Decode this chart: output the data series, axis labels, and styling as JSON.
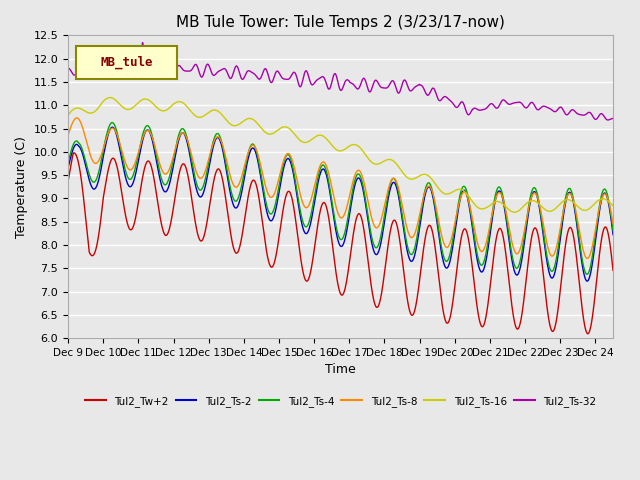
{
  "title": "MB Tule Tower: Tule Temps 2 (3/23/17-now)",
  "xlabel": "Time",
  "ylabel": "Temperature (C)",
  "ylim": [
    6.0,
    12.5
  ],
  "xlim": [
    0,
    15.5
  ],
  "background_color": "#e8e8e8",
  "plot_bg_color": "#e8e8e8",
  "grid_color": "white",
  "legend_label": "MB_tule",
  "series": [
    {
      "name": "Tul2_Tw+2",
      "color": "#cc0000"
    },
    {
      "name": "Tul2_Ts-2",
      "color": "#0000cc"
    },
    {
      "name": "Tul2_Ts-4",
      "color": "#00aa00"
    },
    {
      "name": "Tul2_Ts-8",
      "color": "#ff8800"
    },
    {
      "name": "Tul2_Ts-16",
      "color": "#cccc00"
    },
    {
      "name": "Tul2_Ts-32",
      "color": "#aa00aa"
    }
  ],
  "xtick_labels": [
    "Dec 9",
    "Dec 10",
    "Dec 11",
    "Dec 12",
    "Dec 13",
    "Dec 14",
    "Dec 15",
    "Dec 16",
    "Dec 17",
    "Dec 18",
    "Dec 19",
    "Dec 20",
    "Dec 21",
    "Dec 22",
    "Dec 23",
    "Dec 24"
  ],
  "xtick_positions": [
    0,
    1,
    2,
    3,
    4,
    5,
    6,
    7,
    8,
    9,
    10,
    11,
    12,
    13,
    14,
    15
  ],
  "ytick_values": [
    6.0,
    6.5,
    7.0,
    7.5,
    8.0,
    8.5,
    9.0,
    9.5,
    10.0,
    10.5,
    11.0,
    11.5,
    12.0,
    12.5
  ]
}
